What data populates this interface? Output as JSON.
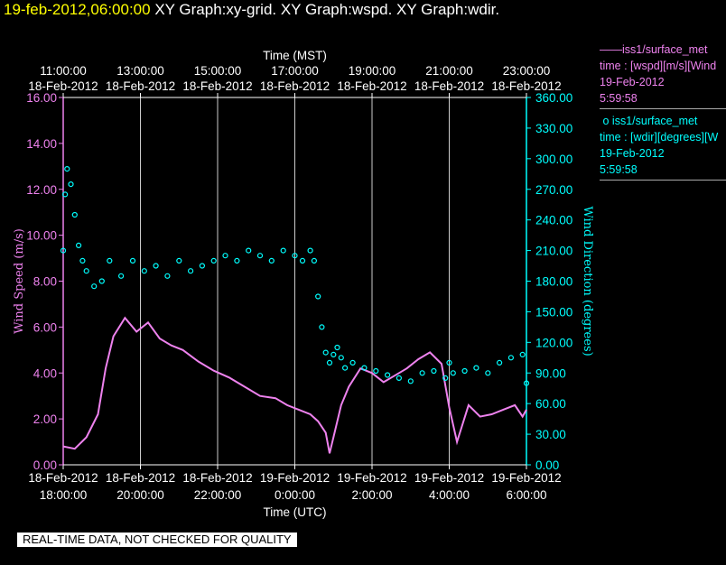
{
  "title": {
    "timestamp": "19-feb-2012,06:00:00",
    "graphs": "XY Graph:xy-grid.  XY Graph:wspd.  XY Graph:wdir."
  },
  "legend": [
    {
      "marker": "——",
      "source": "iss1/surface_met",
      "expr": "time : [wspd][m/s][Wind",
      "date": "19-Feb-2012",
      "time": "5:59:58",
      "color": "#ee82ee"
    },
    {
      "marker": "o",
      "source": "iss1/surface_met",
      "expr": "time : [wdir][degrees][W",
      "date": "19-Feb-2012",
      "time": "5:59:58",
      "color": "#00ffff"
    }
  ],
  "footer": "REAL-TIME DATA, NOT CHECKED FOR QUALITY",
  "colors": {
    "background": "#000000",
    "axes": "#ffffff",
    "wspd": "#ee82ee",
    "wdir": "#00ffff",
    "title_time": "#ffff00"
  },
  "chart_data": {
    "type": "line",
    "top_axis": {
      "label": "Time (MST)",
      "ticks": [
        {
          "t": "11:00:00",
          "d": "18-Feb-2012"
        },
        {
          "t": "13:00:00",
          "d": "18-Feb-2012"
        },
        {
          "t": "15:00:00",
          "d": "18-Feb-2012"
        },
        {
          "t": "17:00:00",
          "d": "18-Feb-2012"
        },
        {
          "t": "19:00:00",
          "d": "18-Feb-2012"
        },
        {
          "t": "21:00:00",
          "d": "18-Feb-2012"
        },
        {
          "t": "23:00:00",
          "d": "18-Feb-2012"
        }
      ]
    },
    "bottom_axis": {
      "label": "Time (UTC)",
      "ticks": [
        {
          "d": "18-Feb-2012",
          "t": "18:00:00"
        },
        {
          "d": "18-Feb-2012",
          "t": "20:00:00"
        },
        {
          "d": "18-Feb-2012",
          "t": "22:00:00"
        },
        {
          "d": "19-Feb-2012",
          "t": "0:00:00"
        },
        {
          "d": "19-Feb-2012",
          "t": "2:00:00"
        },
        {
          "d": "19-Feb-2012",
          "t": "4:00:00"
        },
        {
          "d": "19-Feb-2012",
          "t": "6:00:00"
        }
      ]
    },
    "x_range_hours_utc": [
      18,
      30
    ],
    "y_left": {
      "label": "Wind Speed (m/s)",
      "range": [
        0,
        16
      ],
      "ticks": [
        "0.00",
        "2.00",
        "4.00",
        "6.00",
        "8.00",
        "10.00",
        "12.00",
        "14.00",
        "16.00"
      ]
    },
    "y_right": {
      "label": "Wind Direction (degrees)",
      "range": [
        0,
        360
      ],
      "ticks": [
        "0.00",
        "30.00",
        "60.00",
        "90.00",
        "120.00",
        "150.00",
        "180.00",
        "210.00",
        "240.00",
        "270.00",
        "300.00",
        "330.00",
        "360.00"
      ]
    },
    "grid": "vertical lines at bottom-axis ticks",
    "series": [
      {
        "name": "iss1/surface_met wspd",
        "axis": "left",
        "style": "line",
        "x": [
          18.0,
          18.3,
          18.6,
          18.9,
          19.1,
          19.3,
          19.6,
          19.9,
          20.2,
          20.5,
          20.8,
          21.1,
          21.5,
          21.9,
          22.3,
          22.7,
          23.1,
          23.5,
          23.8,
          24.1,
          24.4,
          24.6,
          24.8,
          24.9,
          25.0,
          25.2,
          25.4,
          25.7,
          26.0,
          26.3,
          26.6,
          26.9,
          27.2,
          27.5,
          27.8,
          28.0,
          28.2,
          28.5,
          28.8,
          29.1,
          29.4,
          29.7,
          29.9,
          30.0
        ],
        "y": [
          0.8,
          0.7,
          1.2,
          2.2,
          4.2,
          5.6,
          6.4,
          5.8,
          6.2,
          5.5,
          5.2,
          5.0,
          4.5,
          4.1,
          3.8,
          3.4,
          3.0,
          2.9,
          2.6,
          2.4,
          2.2,
          1.9,
          1.4,
          0.5,
          1.2,
          2.6,
          3.4,
          4.2,
          4.0,
          3.6,
          3.9,
          4.2,
          4.6,
          4.9,
          4.4,
          2.5,
          1.0,
          2.6,
          2.1,
          2.2,
          2.4,
          2.6,
          2.1,
          2.4
        ]
      },
      {
        "name": "iss1/surface_met wdir",
        "axis": "right",
        "style": "markers",
        "x": [
          18.0,
          18.05,
          18.1,
          18.2,
          18.3,
          18.4,
          18.5,
          18.6,
          18.8,
          19.0,
          19.2,
          19.5,
          19.8,
          20.1,
          20.4,
          20.7,
          21.0,
          21.3,
          21.6,
          21.9,
          22.2,
          22.5,
          22.8,
          23.1,
          23.4,
          23.7,
          24.0,
          24.2,
          24.4,
          24.5,
          24.6,
          24.7,
          24.8,
          24.9,
          25.0,
          25.1,
          25.2,
          25.3,
          25.5,
          25.8,
          26.1,
          26.4,
          26.7,
          27.0,
          27.3,
          27.6,
          27.9,
          28.0,
          28.1,
          28.4,
          28.7,
          29.0,
          29.3,
          29.6,
          29.9,
          30.0
        ],
        "y": [
          210,
          265,
          290,
          275,
          245,
          215,
          200,
          190,
          175,
          180,
          200,
          185,
          200,
          190,
          195,
          185,
          200,
          190,
          195,
          200,
          205,
          200,
          210,
          205,
          200,
          210,
          205,
          200,
          210,
          200,
          165,
          135,
          110,
          100,
          108,
          115,
          105,
          95,
          100,
          95,
          92,
          88,
          85,
          82,
          90,
          92,
          85,
          100,
          90,
          92,
          95,
          90,
          100,
          105,
          108,
          80
        ]
      }
    ]
  }
}
